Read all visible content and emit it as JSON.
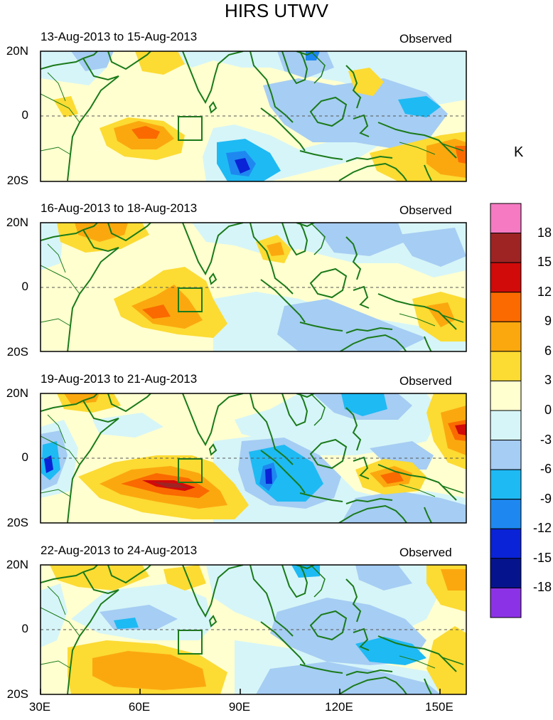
{
  "title": "HIRS UTWV",
  "panels": [
    {
      "date_range": "13-Aug-2013 to 15-Aug-2013",
      "label": "Observed"
    },
    {
      "date_range": "16-Aug-2013 to 18-Aug-2013",
      "label": "Observed"
    },
    {
      "date_range": "19-Aug-2013 to 21-Aug-2013",
      "label": "Observed"
    },
    {
      "date_range": "22-Aug-2013 to 24-Aug-2013",
      "label": "Observed"
    }
  ],
  "lat_ticks": [
    "20N",
    "0",
    "20S"
  ],
  "lon_ticks": [
    "30E",
    "60E",
    "90E",
    "120E",
    "150E"
  ],
  "colorbar": {
    "unit": "K",
    "labels": [
      "18",
      "15",
      "12",
      "9",
      "6",
      "3",
      "0",
      "-3",
      "-6",
      "-9",
      "-12",
      "-15",
      "-18"
    ],
    "colors": [
      "#f57ac2",
      "#9e2424",
      "#d10a0a",
      "#fa6a00",
      "#fba80f",
      "#fcdb33",
      "#ffffd0",
      "#d6f5f8",
      "#a6cdf3",
      "#1ebaf4",
      "#1e88f0",
      "#0a23d6",
      "#05148c",
      "#8c32e6"
    ]
  }
}
